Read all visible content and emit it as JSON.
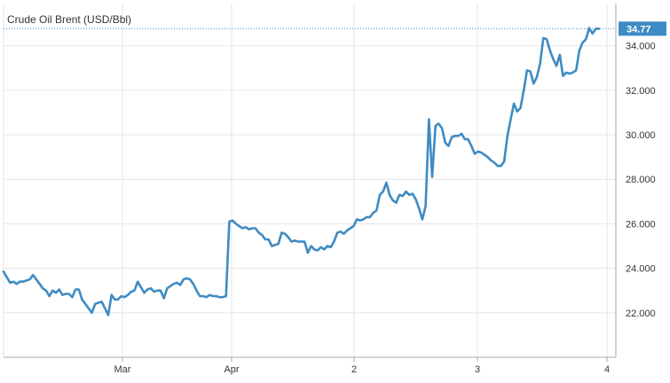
{
  "chart_data": {
    "type": "line",
    "title": "Crude Oil Brent (USD/Bbl)",
    "xlabel": "",
    "ylabel": "",
    "x_ticks": [
      "Mar",
      "Apr",
      "2",
      "3",
      "4"
    ],
    "y_ticks": [
      "22.000",
      "24.000",
      "26.000",
      "28.000",
      "30.000",
      "32.000",
      "34.000"
    ],
    "ylim": [
      20,
      35.9
    ],
    "grid": true,
    "last_value": "34.77",
    "series": [
      {
        "values": [
          23.85,
          23.6,
          23.35,
          23.4,
          23.3,
          23.4,
          23.4,
          23.45,
          23.5,
          23.7,
          23.5,
          23.3,
          23.1,
          23.0,
          22.75,
          23.0,
          22.9,
          23.05,
          22.8,
          22.85,
          22.85,
          22.7,
          23.05,
          23.05,
          22.6,
          22.4,
          22.2,
          22.0,
          22.4,
          22.45,
          22.5,
          22.2,
          21.9,
          22.8,
          22.6,
          22.6,
          22.75,
          22.7,
          22.8,
          22.95,
          23.0,
          23.4,
          23.15,
          22.9,
          23.05,
          23.1,
          22.95,
          23.0,
          23.0,
          22.65,
          23.1,
          23.2,
          23.3,
          23.35,
          23.25,
          23.5,
          23.55,
          23.5,
          23.3,
          23.0,
          22.75,
          22.75,
          22.7,
          22.8,
          22.75,
          22.75,
          22.7,
          22.7,
          22.75,
          26.1,
          26.15,
          26.0,
          25.9,
          25.8,
          25.85,
          25.75,
          25.8,
          25.8,
          25.6,
          25.5,
          25.3,
          25.3,
          25.0,
          25.05,
          25.1,
          25.6,
          25.55,
          25.4,
          25.2,
          25.25,
          25.2,
          25.2,
          25.2,
          24.7,
          25.0,
          24.85,
          24.8,
          24.95,
          24.85,
          25.0,
          24.95,
          25.2,
          25.6,
          25.65,
          25.55,
          25.7,
          25.8,
          25.9,
          26.2,
          26.15,
          26.2,
          26.3,
          26.3,
          26.5,
          26.6,
          27.3,
          27.45,
          27.85,
          27.3,
          27.05,
          26.95,
          27.3,
          27.25,
          27.45,
          27.3,
          27.35,
          27.1,
          26.7,
          26.2,
          26.8,
          30.7,
          28.1,
          30.4,
          30.5,
          30.3,
          29.65,
          29.5,
          29.9,
          29.95,
          29.95,
          30.05,
          29.8,
          29.8,
          29.5,
          29.15,
          29.25,
          29.2,
          29.1,
          29.0,
          28.85,
          28.75,
          28.6,
          28.6,
          28.8,
          29.95,
          30.7,
          31.4,
          31.05,
          31.2,
          32.0,
          32.9,
          32.85,
          32.3,
          32.6,
          33.2,
          34.35,
          34.3,
          33.8,
          33.4,
          33.1,
          33.6,
          32.65,
          32.8,
          32.75,
          32.8,
          32.9,
          33.8,
          34.15,
          34.3,
          34.8,
          34.55,
          34.77,
          34.77
        ]
      }
    ],
    "colors": {
      "line": "#3f8bc3",
      "grid": "#e6e6e6",
      "axis": "#aaaaaa",
      "last_label_bg": "#3f8bc3",
      "dotted_line": "#3f8bc3"
    }
  }
}
